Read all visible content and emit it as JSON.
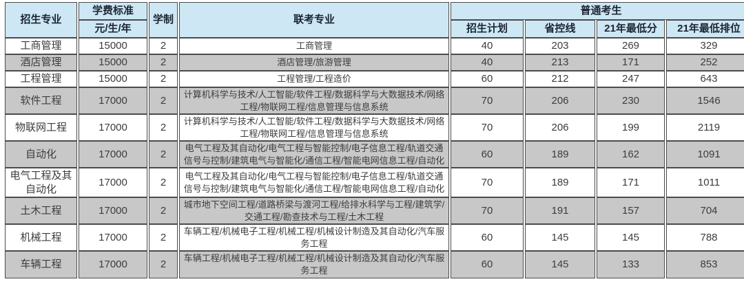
{
  "colors": {
    "header_bg": "#cde8f4",
    "gray_row_bg": "#c8c8c8",
    "white_row_bg": "#ffffff",
    "border": "#4a4a4a",
    "header_text": "#1b2433",
    "body_text": "#3c3c3c"
  },
  "header": {
    "major": "招生专业",
    "fee_line1": "学费标准",
    "fee_line2": "元/生/年",
    "years": "学制",
    "joint": "联考专业",
    "group": "普通考生",
    "plan": "招生计划",
    "province_line": "省控线",
    "min_score_21": "21年最低分",
    "min_rank_21": "21年最低排位"
  },
  "table": {
    "rows": [
      {
        "major": "工商管理",
        "fee": "15000",
        "years": "2",
        "joint": "工商管理",
        "plan": "40",
        "line": "203",
        "score": "269",
        "rank": "329"
      },
      {
        "major": "酒店管理",
        "fee": "15000",
        "years": "2",
        "joint": "酒店管理/旅游管理",
        "plan": "40",
        "line": "213",
        "score": "171",
        "rank": "252"
      },
      {
        "major": "工程管理",
        "fee": "15000",
        "years": "2",
        "joint": "工程管理/工程造价",
        "plan": "60",
        "line": "212",
        "score": "247",
        "rank": "643"
      },
      {
        "major": "软件工程",
        "fee": "17000",
        "years": "2",
        "joint": "计算机科学与技术/人工智能/软件工程/数据科学与大数据技术/网络工程/物联网工程/信息管理与信息系统",
        "plan": "70",
        "line": "206",
        "score": "230",
        "rank": "1546"
      },
      {
        "major": "物联网工程",
        "fee": "17000",
        "years": "2",
        "joint": "计算机科学与技术/人工智能/软件工程/数据科学与大数据技术/网络工程/物联网工程/信息管理与信息系统",
        "plan": "70",
        "line": "206",
        "score": "199",
        "rank": "2119"
      },
      {
        "major": "自动化",
        "fee": "17000",
        "years": "2",
        "joint": "电气工程及其自动化/电气工程与智能控制/电子信息工程/轨道交通信号与控制/建筑电气与智能化/通信工程/智能电网信息工程/自动化",
        "plan": "60",
        "line": "189",
        "score": "162",
        "rank": "1091"
      },
      {
        "major": "电气工程及其自动化",
        "fee": "17000",
        "years": "2",
        "joint": "电气工程及其自动化/电气工程与智能控制/电子信息工程/轨道交通信号与控制/建筑电气与智能化/通信工程/智能电网信息工程/自动化",
        "plan": "70",
        "line": "189",
        "score": "171",
        "rank": "1011"
      },
      {
        "major": "土木工程",
        "fee": "17000",
        "years": "2",
        "joint": "城市地下空间工程/道路桥梁与渡河工程/给排水科学与工程/建筑学/交通工程/勘查技术与工程/土木工程",
        "plan": "70",
        "line": "191",
        "score": "157",
        "rank": "704"
      },
      {
        "major": "机械工程",
        "fee": "17000",
        "years": "2",
        "joint": "车辆工程/机械电子工程/机械工程/机械设计制造及其自动化/汽车服务工程",
        "plan": "60",
        "line": "145",
        "score": "145",
        "rank": "788"
      },
      {
        "major": "车辆工程",
        "fee": "17000",
        "years": "2",
        "joint": "车辆工程/机械电子工程/机械工程/机械设计制造及其自动化/汽车服务工程",
        "plan": "60",
        "line": "145",
        "score": "133",
        "rank": "853"
      }
    ]
  }
}
